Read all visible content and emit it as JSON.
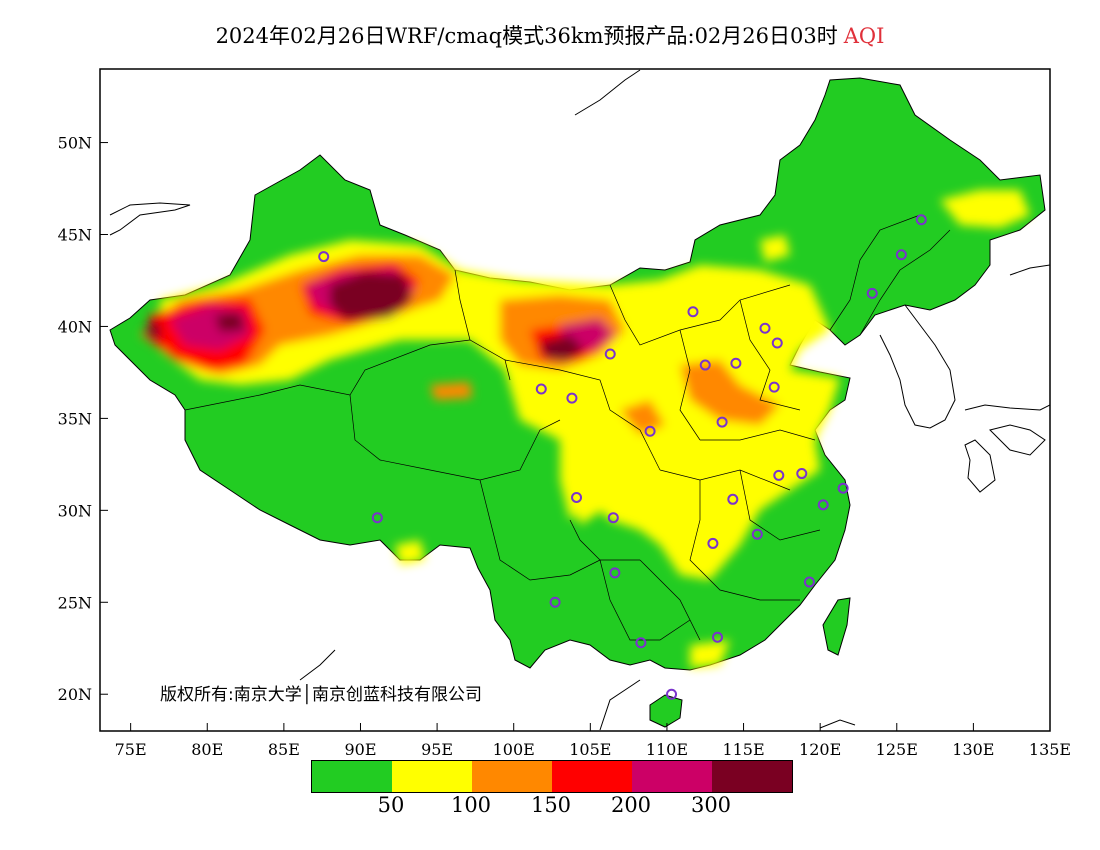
{
  "title": {
    "main": "2024年02月26日WRF/cmaq模式36km预报产品:02月26日03时",
    "variable": "AQI",
    "variable_color": "#e0303a"
  },
  "axes": {
    "x_ticks": [
      "75E",
      "80E",
      "85E",
      "90E",
      "95E",
      "100E",
      "105E",
      "110E",
      "115E",
      "120E",
      "125E",
      "130E",
      "135E"
    ],
    "y_ticks": [
      "50N",
      "45N",
      "40N",
      "35N",
      "30N",
      "25N",
      "20N"
    ],
    "x_range": [
      73,
      135
    ],
    "y_range": [
      18,
      54
    ]
  },
  "copyright": "版权所有:南京大学│南京创蓝科技有限公司",
  "legend": {
    "colors": [
      "#22cc22",
      "#ffff00",
      "#ff8800",
      "#ff0000",
      "#cc0066",
      "#7a0022"
    ],
    "labels": [
      "50",
      "100",
      "150",
      "200",
      "300"
    ]
  },
  "station_marker_color": "#7a33cc",
  "stations": [
    {
      "lon": 87.6,
      "lat": 43.8
    },
    {
      "lon": 91.1,
      "lat": 29.6
    },
    {
      "lon": 101.8,
      "lat": 36.6
    },
    {
      "lon": 103.8,
      "lat": 36.1
    },
    {
      "lon": 104.1,
      "lat": 30.7
    },
    {
      "lon": 106.3,
      "lat": 38.5
    },
    {
      "lon": 106.6,
      "lat": 26.6
    },
    {
      "lon": 106.5,
      "lat": 29.6
    },
    {
      "lon": 102.7,
      "lat": 25.0
    },
    {
      "lon": 108.3,
      "lat": 22.8
    },
    {
      "lon": 110.3,
      "lat": 20.0
    },
    {
      "lon": 108.9,
      "lat": 34.3
    },
    {
      "lon": 111.7,
      "lat": 40.8
    },
    {
      "lon": 112.5,
      "lat": 37.9
    },
    {
      "lon": 114.5,
      "lat": 38.0
    },
    {
      "lon": 116.4,
      "lat": 39.9
    },
    {
      "lon": 117.2,
      "lat": 39.1
    },
    {
      "lon": 117.0,
      "lat": 36.7
    },
    {
      "lon": 113.6,
      "lat": 34.8
    },
    {
      "lon": 114.3,
      "lat": 30.6
    },
    {
      "lon": 113.0,
      "lat": 28.2
    },
    {
      "lon": 115.9,
      "lat": 28.7
    },
    {
      "lon": 117.3,
      "lat": 31.9
    },
    {
      "lon": 118.8,
      "lat": 32.0
    },
    {
      "lon": 120.2,
      "lat": 30.3
    },
    {
      "lon": 121.5,
      "lat": 31.2
    },
    {
      "lon": 119.3,
      "lat": 26.1
    },
    {
      "lon": 113.3,
      "lat": 23.1
    },
    {
      "lon": 123.4,
      "lat": 41.8
    },
    {
      "lon": 125.3,
      "lat": 43.9
    },
    {
      "lon": 126.6,
      "lat": 45.8
    }
  ]
}
